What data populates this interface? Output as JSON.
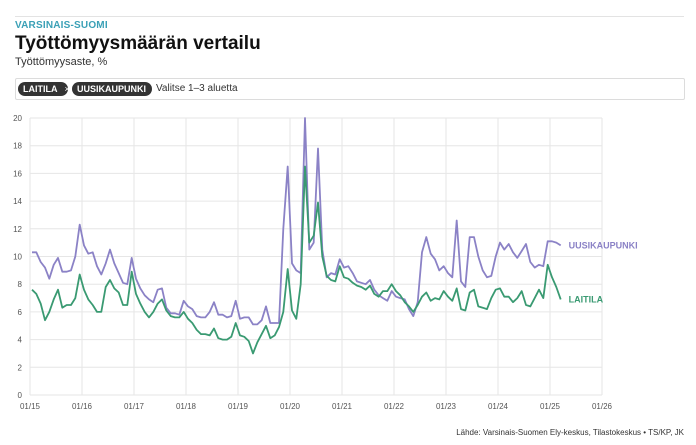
{
  "header": {
    "kicker": "VARSINAIS-SUOMI",
    "title": "Työttömyysmäärän vertailu",
    "subtitle": "Työttömyysaste, %"
  },
  "selector": {
    "chips": [
      {
        "label": "LAITILA",
        "remove": "×"
      },
      {
        "label": "UUSIKAUPUNKI",
        "remove": "×"
      }
    ],
    "placeholder": "Valitse 1–3 aluetta"
  },
  "source": "Lähde: Varsinais-Suomen Ely-keskus, Tilastokeskus • TS/KP, JK",
  "colors": {
    "uusikaupunki": "#8b82c6",
    "laitila": "#3a9a72",
    "grid": "#e6e6e6",
    "kicker": "#3aa0b6"
  },
  "chart_data": {
    "type": "line",
    "title": "Työttömyysmäärän vertailu",
    "ylabel": "Työttömyysaste, %",
    "xlabel": "",
    "x_ticks": [
      "01/15",
      "01/16",
      "01/17",
      "01/18",
      "01/19",
      "01/20",
      "01/21",
      "01/22",
      "01/23",
      "01/24",
      "01/25",
      "01/26"
    ],
    "y_ticks": [
      0,
      2,
      4,
      6,
      8,
      10,
      12,
      14,
      16,
      18,
      20
    ],
    "ylim": [
      0,
      20
    ],
    "x_start": "2015-01",
    "grid": true,
    "legend": "inline-right",
    "series": [
      {
        "name": "UUSIKAUPUNKI",
        "color": "#8b82c6",
        "values": [
          10.3,
          10.3,
          9.6,
          9.2,
          8.4,
          9.4,
          9.9,
          8.9,
          8.9,
          9.0,
          10.0,
          12.3,
          10.8,
          10.2,
          10.3,
          9.3,
          8.7,
          9.5,
          10.5,
          9.5,
          8.8,
          8.1,
          8.0,
          9.9,
          8.4,
          7.7,
          7.2,
          6.9,
          6.7,
          7.6,
          7.7,
          6.3,
          5.9,
          5.9,
          5.8,
          6.8,
          6.4,
          6.2,
          5.7,
          5.6,
          5.6,
          6.0,
          6.7,
          5.8,
          5.8,
          5.6,
          5.7,
          6.8,
          5.5,
          5.6,
          5.6,
          5.1,
          5.1,
          5.4,
          6.4,
          5.2,
          5.2,
          5.2,
          12.0,
          16.5,
          9.5,
          9.0,
          8.8,
          20.5,
          10.5,
          11.0,
          17.8,
          10.5,
          8.5,
          8.8,
          8.7,
          9.8,
          9.2,
          9.3,
          8.8,
          8.2,
          8.1,
          8.0,
          8.3,
          7.6,
          7.2,
          7.0,
          6.8,
          7.5,
          7.1,
          7.0,
          6.9,
          6.2,
          5.7,
          6.7,
          10.3,
          11.4,
          10.2,
          9.8,
          9.0,
          9.3,
          8.8,
          8.5,
          12.6,
          8.2,
          7.8,
          11.4,
          11.4,
          10.0,
          9.0,
          8.5,
          8.6,
          10.0,
          11.0,
          10.5,
          10.9,
          10.3,
          9.9,
          10.4,
          10.9,
          9.6,
          9.2,
          9.4,
          9.3,
          11.1,
          11.1,
          11.0,
          10.8
        ]
      },
      {
        "name": "LAITILA",
        "color": "#3a9a72",
        "values": [
          7.6,
          7.3,
          6.6,
          5.4,
          6.0,
          6.9,
          7.6,
          6.3,
          6.5,
          6.5,
          7.0,
          8.7,
          7.6,
          6.9,
          6.5,
          6.0,
          6.0,
          7.8,
          8.3,
          7.7,
          7.4,
          6.5,
          6.5,
          8.9,
          7.3,
          6.6,
          6.0,
          5.6,
          6.0,
          6.6,
          6.9,
          6.1,
          5.7,
          5.6,
          5.6,
          6.0,
          5.5,
          5.2,
          4.7,
          4.4,
          4.4,
          4.3,
          4.8,
          4.1,
          4.0,
          4.0,
          4.2,
          5.2,
          4.3,
          4.2,
          3.9,
          3.0,
          3.8,
          4.4,
          5.0,
          4.1,
          4.3,
          4.9,
          6.0,
          9.1,
          6.1,
          5.5,
          8.0,
          16.5,
          11.0,
          11.5,
          13.9,
          10.0,
          8.6,
          8.3,
          8.2,
          9.3,
          8.5,
          8.4,
          8.1,
          7.9,
          7.8,
          7.6,
          7.9,
          7.3,
          7.1,
          7.5,
          7.5,
          8.0,
          7.5,
          7.2,
          6.7,
          6.4,
          6.0,
          6.5,
          7.1,
          7.4,
          6.8,
          7.0,
          6.9,
          7.5,
          7.1,
          6.8,
          7.7,
          6.2,
          6.1,
          7.4,
          7.6,
          6.4,
          6.3,
          6.2,
          7.0,
          7.6,
          7.7,
          7.1,
          7.1,
          6.7,
          7.0,
          7.5,
          6.5,
          6.4,
          7.0,
          7.6,
          7.0,
          9.4,
          8.5,
          7.8,
          6.9
        ]
      }
    ]
  }
}
